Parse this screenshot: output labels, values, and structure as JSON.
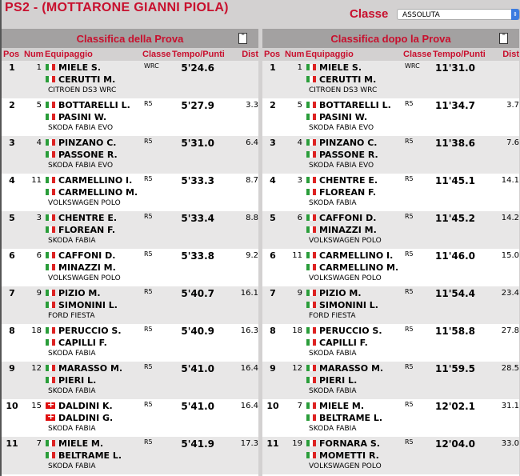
{
  "header": {
    "title": "PS2 - (MOTTARONE GIANNI PIOLA)",
    "classe_label": "Classe",
    "classe_value": "ASSOLUTA"
  },
  "columns": {
    "pos": "Pos",
    "num": "Num",
    "crew": "Equipaggio",
    "class": "Classe",
    "time": "Tempo/Punti",
    "dist": "Dist"
  },
  "panels": [
    {
      "title": "Classifica della Prova",
      "rows": [
        {
          "pos": "1",
          "num": "1",
          "d1": "MIELE S.",
          "f1": "it",
          "d2": "CERUTTI M.",
          "f2": "it",
          "car": "CITROEN DS3 WRC",
          "cls": "WRC",
          "time": "5'24.6",
          "dist": ""
        },
        {
          "pos": "2",
          "num": "5",
          "d1": "BOTTARELLI L.",
          "f1": "it",
          "d2": "PASINI W.",
          "f2": "it",
          "car": "SKODA FABIA EVO",
          "cls": "R5",
          "time": "5'27.9",
          "dist": "3.3"
        },
        {
          "pos": "3",
          "num": "4",
          "d1": "PINZANO C.",
          "f1": "it",
          "d2": "PASSONE R.",
          "f2": "it",
          "car": "SKODA FABIA EVO",
          "cls": "R5",
          "time": "5'31.0",
          "dist": "6.4"
        },
        {
          "pos": "4",
          "num": "11",
          "d1": "CARMELLINO I.",
          "f1": "it",
          "d2": "CARMELLINO M.",
          "f2": "it",
          "car": "VOLKSWAGEN POLO",
          "cls": "R5",
          "time": "5'33.3",
          "dist": "8.7"
        },
        {
          "pos": "5",
          "num": "3",
          "d1": "CHENTRE E.",
          "f1": "it",
          "d2": "FLOREAN F.",
          "f2": "it",
          "car": "SKODA FABIA",
          "cls": "R5",
          "time": "5'33.4",
          "dist": "8.8"
        },
        {
          "pos": "6",
          "num": "6",
          "d1": "CAFFONI D.",
          "f1": "it",
          "d2": "MINAZZI M.",
          "f2": "it",
          "car": "VOLKSWAGEN POLO",
          "cls": "R5",
          "time": "5'33.8",
          "dist": "9.2"
        },
        {
          "pos": "7",
          "num": "9",
          "d1": "PIZIO M.",
          "f1": "it",
          "d2": "SIMONINI L.",
          "f2": "it",
          "car": "FORD FIESTA",
          "cls": "R5",
          "time": "5'40.7",
          "dist": "16.1"
        },
        {
          "pos": "8",
          "num": "18",
          "d1": "PERUCCIO S.",
          "f1": "it",
          "d2": "CAPILLI F.",
          "f2": "it",
          "car": "SKODA FABIA",
          "cls": "R5",
          "time": "5'40.9",
          "dist": "16.3"
        },
        {
          "pos": "9",
          "num": "12",
          "d1": "MARASSO M.",
          "f1": "it",
          "d2": "PIERI L.",
          "f2": "it",
          "car": "SKODA FABIA",
          "cls": "R5",
          "time": "5'41.0",
          "dist": "16.4"
        },
        {
          "pos": "10",
          "num": "15",
          "d1": "DALDINI K.",
          "f1": "ch",
          "d2": "DALDINI G.",
          "f2": "ch",
          "car": "SKODA FABIA",
          "cls": "R5",
          "time": "5'41.0",
          "dist": "16.4"
        },
        {
          "pos": "11",
          "num": "7",
          "d1": "MIELE M.",
          "f1": "it",
          "d2": "BELTRAME L.",
          "f2": "it",
          "car": "SKODA FABIA",
          "cls": "R5",
          "time": "5'41.9",
          "dist": "17.3"
        }
      ]
    },
    {
      "title": "Classifica dopo la Prova",
      "rows": [
        {
          "pos": "1",
          "num": "1",
          "d1": "MIELE S.",
          "f1": "it",
          "d2": "CERUTTI M.",
          "f2": "it",
          "car": "CITROEN DS3 WRC",
          "cls": "WRC",
          "time": "11'31.0",
          "dist": ""
        },
        {
          "pos": "2",
          "num": "5",
          "d1": "BOTTARELLI L.",
          "f1": "it",
          "d2": "PASINI W.",
          "f2": "it",
          "car": "SKODA FABIA EVO",
          "cls": "R5",
          "time": "11'34.7",
          "dist": "3.7"
        },
        {
          "pos": "3",
          "num": "4",
          "d1": "PINZANO C.",
          "f1": "it",
          "d2": "PASSONE R.",
          "f2": "it",
          "car": "SKODA FABIA EVO",
          "cls": "R5",
          "time": "11'38.6",
          "dist": "7.6"
        },
        {
          "pos": "4",
          "num": "3",
          "d1": "CHENTRE E.",
          "f1": "it",
          "d2": "FLOREAN F.",
          "f2": "it",
          "car": "SKODA FABIA",
          "cls": "R5",
          "time": "11'45.1",
          "dist": "14.1"
        },
        {
          "pos": "5",
          "num": "6",
          "d1": "CAFFONI D.",
          "f1": "it",
          "d2": "MINAZZI M.",
          "f2": "it",
          "car": "VOLKSWAGEN POLO",
          "cls": "R5",
          "time": "11'45.2",
          "dist": "14.2"
        },
        {
          "pos": "6",
          "num": "11",
          "d1": "CARMELLINO I.",
          "f1": "it",
          "d2": "CARMELLINO M.",
          "f2": "it",
          "car": "VOLKSWAGEN POLO",
          "cls": "R5",
          "time": "11'46.0",
          "dist": "15.0"
        },
        {
          "pos": "7",
          "num": "9",
          "d1": "PIZIO M.",
          "f1": "it",
          "d2": "SIMONINI L.",
          "f2": "it",
          "car": "FORD FIESTA",
          "cls": "R5",
          "time": "11'54.4",
          "dist": "23.4"
        },
        {
          "pos": "8",
          "num": "18",
          "d1": "PERUCCIO S.",
          "f1": "it",
          "d2": "CAPILLI F.",
          "f2": "it",
          "car": "SKODA FABIA",
          "cls": "R5",
          "time": "11'58.8",
          "dist": "27.8"
        },
        {
          "pos": "9",
          "num": "12",
          "d1": "MARASSO M.",
          "f1": "it",
          "d2": "PIERI L.",
          "f2": "it",
          "car": "SKODA FABIA",
          "cls": "R5",
          "time": "11'59.5",
          "dist": "28.5"
        },
        {
          "pos": "10",
          "num": "7",
          "d1": "MIELE M.",
          "f1": "it",
          "d2": "BELTRAME L.",
          "f2": "it",
          "car": "SKODA FABIA",
          "cls": "R5",
          "time": "12'02.1",
          "dist": "31.1"
        },
        {
          "pos": "11",
          "num": "19",
          "d1": "FORNARA S.",
          "f1": "it",
          "d2": "MOMETTI R.",
          "f2": "it",
          "car": "VOLKSWAGEN POLO",
          "cls": "R5",
          "time": "12'04.0",
          "dist": "33.0"
        }
      ]
    }
  ]
}
